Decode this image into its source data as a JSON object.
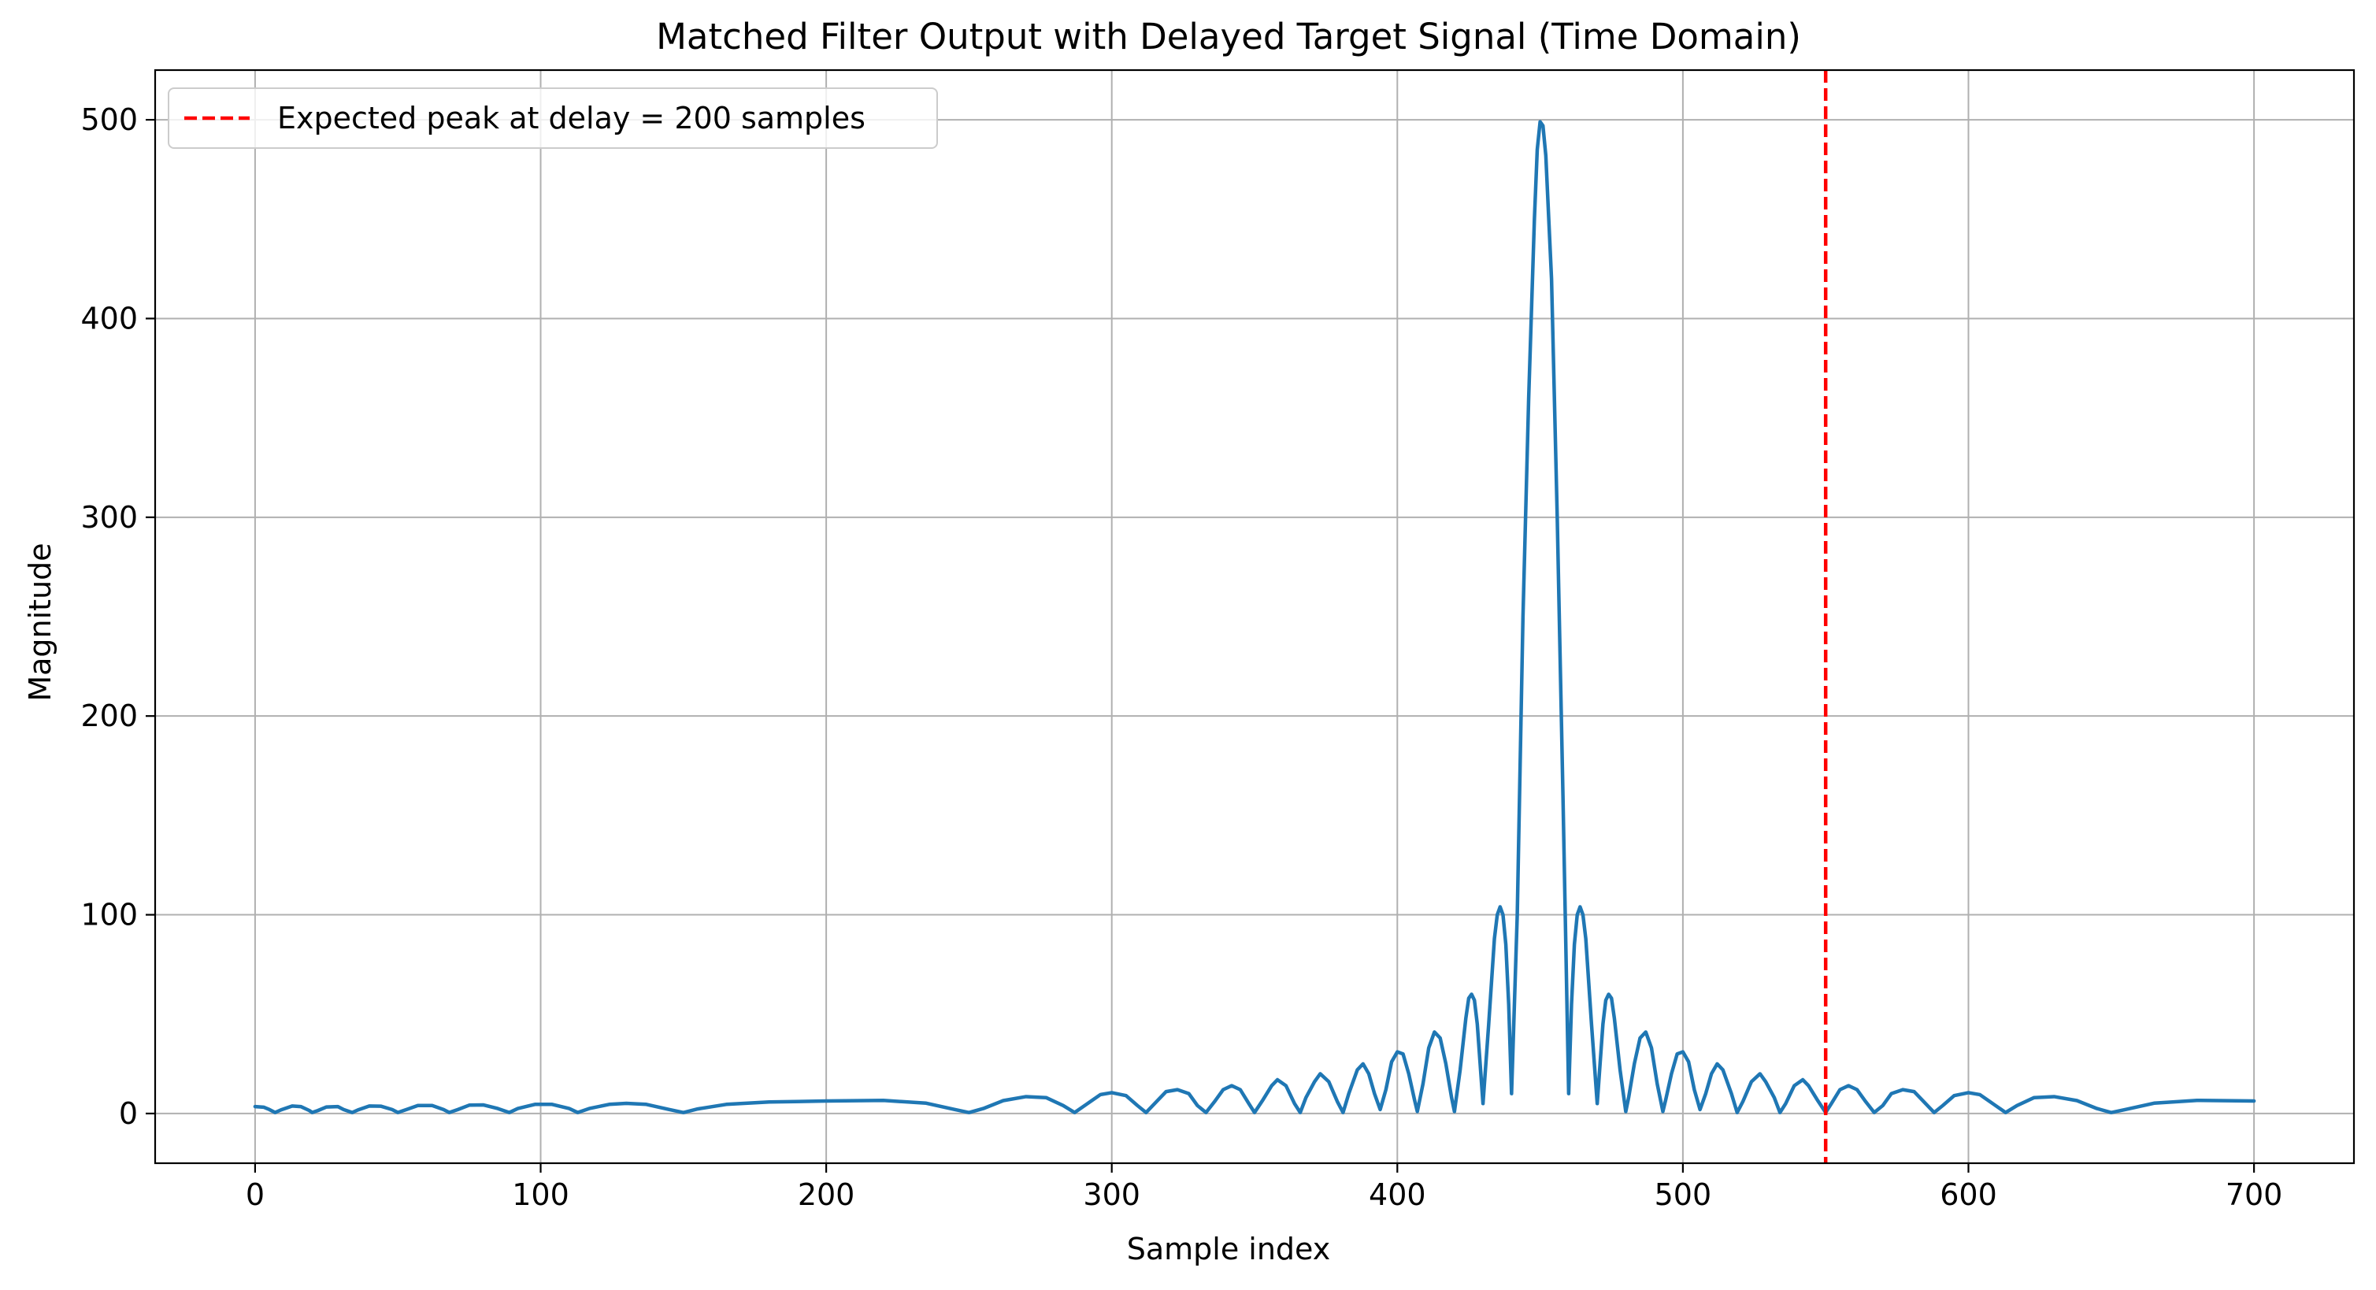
{
  "chart_data": {
    "type": "line",
    "title": "Matched Filter Output with Delayed Target Signal (Time Domain)",
    "xlabel": "Sample index",
    "ylabel": "Magnitude",
    "xlim": [
      -35,
      735
    ],
    "ylim": [
      -25,
      525
    ],
    "grid": true,
    "legend_position": "top-left",
    "x_ticks": [
      0,
      100,
      200,
      300,
      400,
      500,
      600,
      700
    ],
    "x_tick_labels": [
      "0",
      "100",
      "200",
      "300",
      "400",
      "500",
      "600",
      "700"
    ],
    "y_ticks": [
      0,
      100,
      200,
      300,
      400,
      500
    ],
    "y_tick_labels": [
      "0",
      "100",
      "200",
      "300",
      "400",
      "500"
    ],
    "series": [
      {
        "color": "#1f77b4",
        "points": [
          [
            0,
            3.5
          ],
          [
            3,
            3.2
          ],
          [
            5,
            2
          ],
          [
            7,
            0.5
          ],
          [
            9,
            1.8
          ],
          [
            13,
            3.8
          ],
          [
            16,
            3.5
          ],
          [
            19,
            1.5
          ],
          [
            20,
            0.5
          ],
          [
            22,
            1.5
          ],
          [
            25,
            3.3
          ],
          [
            29,
            3.5
          ],
          [
            31,
            2
          ],
          [
            34,
            0.5
          ],
          [
            36,
            1.8
          ],
          [
            40,
            3.8
          ],
          [
            44,
            3.7
          ],
          [
            48,
            2
          ],
          [
            50,
            0.5
          ],
          [
            53,
            2
          ],
          [
            57,
            4
          ],
          [
            62,
            4
          ],
          [
            66,
            2
          ],
          [
            68,
            0.5
          ],
          [
            71,
            2
          ],
          [
            75,
            4.2
          ],
          [
            80,
            4.3
          ],
          [
            85,
            2.5
          ],
          [
            89,
            0.5
          ],
          [
            92,
            2.5
          ],
          [
            98,
            4.6
          ],
          [
            104,
            4.6
          ],
          [
            110,
            2.5
          ],
          [
            113,
            0.5
          ],
          [
            117,
            2.5
          ],
          [
            124,
            4.6
          ],
          [
            130,
            5.1
          ],
          [
            137,
            4.6
          ],
          [
            145,
            2
          ],
          [
            150,
            0.5
          ],
          [
            155,
            2.3
          ],
          [
            165,
            4.6
          ],
          [
            180,
            5.8
          ],
          [
            200,
            6.3
          ],
          [
            220,
            6.6
          ],
          [
            235,
            5.2
          ],
          [
            245,
            2
          ],
          [
            250,
            0.5
          ],
          [
            255,
            2.5
          ],
          [
            262,
            6.5
          ],
          [
            270,
            8.5
          ],
          [
            277,
            8
          ],
          [
            283,
            4
          ],
          [
            287,
            0.5
          ],
          [
            291,
            4.5
          ],
          [
            296,
            9.5
          ],
          [
            300,
            10.5
          ],
          [
            305,
            9
          ],
          [
            309,
            4
          ],
          [
            312,
            0.5
          ],
          [
            315,
            5
          ],
          [
            319,
            11
          ],
          [
            323,
            12
          ],
          [
            327,
            10
          ],
          [
            330,
            4
          ],
          [
            333,
            0.5
          ],
          [
            336,
            6
          ],
          [
            339,
            12
          ],
          [
            342,
            14
          ],
          [
            345,
            12
          ],
          [
            348,
            5
          ],
          [
            350,
            0.5
          ],
          [
            353,
            7
          ],
          [
            356,
            14
          ],
          [
            358,
            17
          ],
          [
            361,
            14
          ],
          [
            364,
            5
          ],
          [
            366,
            0.5
          ],
          [
            368,
            8
          ],
          [
            371,
            16
          ],
          [
            373,
            20
          ],
          [
            376,
            16
          ],
          [
            379,
            6
          ],
          [
            381,
            0.5
          ],
          [
            383,
            10
          ],
          [
            386,
            22
          ],
          [
            388,
            25
          ],
          [
            390,
            20
          ],
          [
            392,
            10
          ],
          [
            394,
            2
          ],
          [
            396,
            12
          ],
          [
            398,
            26
          ],
          [
            400,
            31
          ],
          [
            402,
            30
          ],
          [
            404,
            20
          ],
          [
            406,
            7
          ],
          [
            407,
            1
          ],
          [
            409,
            15
          ],
          [
            411,
            33
          ],
          [
            413,
            41
          ],
          [
            415,
            38
          ],
          [
            417,
            25
          ],
          [
            419,
            8
          ],
          [
            420,
            1
          ],
          [
            422,
            22
          ],
          [
            424,
            48
          ],
          [
            425,
            58
          ],
          [
            426,
            60
          ],
          [
            427,
            57
          ],
          [
            428,
            45
          ],
          [
            429,
            25
          ],
          [
            430,
            5
          ],
          [
            432,
            45
          ],
          [
            434,
            88
          ],
          [
            435,
            100
          ],
          [
            436,
            104
          ],
          [
            437,
            100
          ],
          [
            438,
            85
          ],
          [
            439,
            55
          ],
          [
            440,
            10
          ],
          [
            442,
            100
          ],
          [
            444,
            250
          ],
          [
            446,
            360
          ],
          [
            448,
            450
          ],
          [
            449,
            485
          ],
          [
            450,
            499
          ],
          [
            451,
            497
          ],
          [
            452,
            482
          ],
          [
            454,
            420
          ],
          [
            456,
            300
          ],
          [
            458,
            160
          ],
          [
            460,
            10
          ],
          [
            461,
            55
          ],
          [
            462,
            85
          ],
          [
            463,
            100
          ],
          [
            464,
            104
          ],
          [
            465,
            100
          ],
          [
            466,
            88
          ],
          [
            468,
            45
          ],
          [
            470,
            5
          ],
          [
            471,
            25
          ],
          [
            472,
            45
          ],
          [
            473,
            57
          ],
          [
            474,
            60
          ],
          [
            475,
            58
          ],
          [
            476,
            48
          ],
          [
            478,
            22
          ],
          [
            480,
            1
          ],
          [
            481,
            8
          ],
          [
            483,
            25
          ],
          [
            485,
            38
          ],
          [
            487,
            41
          ],
          [
            489,
            33
          ],
          [
            491,
            15
          ],
          [
            493,
            1
          ],
          [
            494,
            7
          ],
          [
            496,
            20
          ],
          [
            498,
            30
          ],
          [
            500,
            31
          ],
          [
            502,
            26
          ],
          [
            504,
            12
          ],
          [
            506,
            2
          ],
          [
            508,
            10
          ],
          [
            510,
            20
          ],
          [
            512,
            25
          ],
          [
            514,
            22
          ],
          [
            517,
            10
          ],
          [
            519,
            0.5
          ],
          [
            521,
            6
          ],
          [
            524,
            16
          ],
          [
            527,
            20
          ],
          [
            529,
            16
          ],
          [
            532,
            8
          ],
          [
            534,
            0.5
          ],
          [
            536,
            5
          ],
          [
            539,
            14
          ],
          [
            542,
            17
          ],
          [
            544,
            14
          ],
          [
            547,
            7
          ],
          [
            550,
            0.5
          ],
          [
            552,
            5
          ],
          [
            555,
            12
          ],
          [
            558,
            14
          ],
          [
            561,
            12
          ],
          [
            564,
            6
          ],
          [
            567,
            0.5
          ],
          [
            570,
            4
          ],
          [
            573,
            10
          ],
          [
            577,
            12
          ],
          [
            581,
            11
          ],
          [
            585,
            5
          ],
          [
            588,
            0.5
          ],
          [
            591,
            4
          ],
          [
            595,
            9
          ],
          [
            600,
            10.5
          ],
          [
            604,
            9.5
          ],
          [
            609,
            4.5
          ],
          [
            613,
            0.5
          ],
          [
            617,
            4
          ],
          [
            623,
            8
          ],
          [
            630,
            8.5
          ],
          [
            638,
            6.5
          ],
          [
            645,
            2.5
          ],
          [
            650,
            0.5
          ],
          [
            655,
            2
          ],
          [
            665,
            5.2
          ],
          [
            680,
            6.6
          ],
          [
            700,
            6.3
          ]
        ]
      }
    ],
    "annotations": {
      "vertical_line": {
        "x": 550,
        "color": "#ff0000",
        "style": "dashed",
        "label": "Expected peak at delay = 200 samples"
      }
    }
  }
}
